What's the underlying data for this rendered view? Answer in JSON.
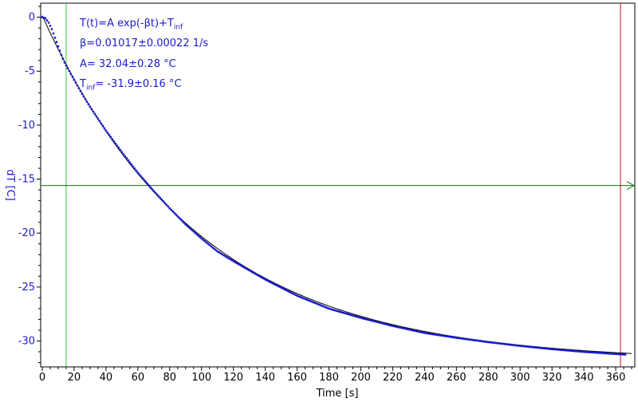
{
  "chart_data": {
    "type": "scatter",
    "xlabel": "Time [s]",
    "ylabel": "dT [C]",
    "xlim": [
      -1,
      372
    ],
    "ylim": [
      -32.4,
      1.3
    ],
    "xticks": [
      0,
      20,
      40,
      60,
      80,
      100,
      120,
      140,
      160,
      180,
      200,
      220,
      240,
      260,
      280,
      300,
      320,
      340,
      360
    ],
    "yticks": [
      0,
      -5,
      -10,
      -15,
      -20,
      -25,
      -30
    ],
    "grid": false,
    "fit": {
      "formula_line": "T(t)=A exp(-βt)+T",
      "formula_sub": "inf",
      "beta_line": "β=0.01017±0.00022 1/s",
      "a_line": "A= 32.04±0.28 °C",
      "tinf_prefix": "T",
      "tinf_sub": "inf",
      "tinf_value": "= -31.9±0.16 °C",
      "A": 32.04,
      "beta": 0.01017,
      "T_inf": -31.9
    },
    "series": [
      {
        "kind": "measured",
        "color": "#1a1acc",
        "x_start": 0,
        "x_end": 366,
        "x_step": 1,
        "points": [
          [
            0,
            0
          ],
          [
            2,
            -0.1
          ],
          [
            4,
            -0.5
          ],
          [
            6,
            -1.1
          ],
          [
            8,
            -1.9
          ],
          [
            10,
            -2.7
          ],
          [
            12,
            -3.5
          ],
          [
            14,
            -4.2
          ],
          [
            17,
            -5.0
          ],
          [
            20,
            -5.8
          ],
          [
            25,
            -7.1
          ],
          [
            30,
            -8.3
          ],
          [
            40,
            -10.5
          ],
          [
            50,
            -12.5
          ],
          [
            60,
            -14.4
          ],
          [
            70,
            -16.1
          ],
          [
            80,
            -17.7
          ],
          [
            90,
            -19.2
          ],
          [
            100,
            -20.5
          ],
          [
            110,
            -21.7
          ],
          [
            120,
            -22.6
          ],
          [
            140,
            -24.3
          ],
          [
            160,
            -25.8
          ],
          [
            180,
            -27.0
          ],
          [
            200,
            -27.85
          ],
          [
            220,
            -28.6
          ],
          [
            240,
            -29.25
          ],
          [
            260,
            -29.7
          ],
          [
            280,
            -30.1
          ],
          [
            300,
            -30.45
          ],
          [
            320,
            -30.75
          ],
          [
            340,
            -31.0
          ],
          [
            360,
            -31.2
          ],
          [
            366,
            -31.25
          ]
        ]
      },
      {
        "kind": "fit",
        "color": "#000000",
        "x_start": 0,
        "x_end": 370
      }
    ],
    "markers": {
      "green_vertical_x": 15,
      "green_vertical_color": "#33cc33",
      "red_vertical_x": 363,
      "red_vertical_color": "#cc1111",
      "horizontal_y": -15.6,
      "horizontal_color": "#117711"
    }
  }
}
